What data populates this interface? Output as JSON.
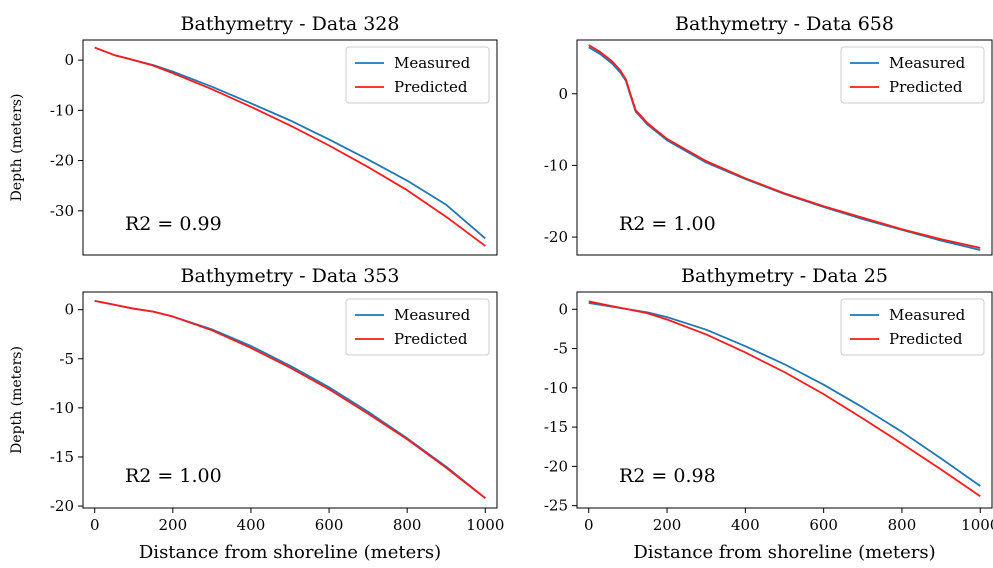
{
  "colors": {
    "measured": "#1f77b4",
    "predicted": "#ff1a1a",
    "axis": "#000000",
    "legend_border": "#cccccc"
  },
  "chart_data": [
    {
      "type": "line",
      "title": "Bathymetry - Data 328",
      "xlabel": "",
      "ylabel": "Depth (meters)",
      "xlim": [
        -30,
        1030
      ],
      "ylim": [
        -38.8,
        4
      ],
      "xticks": [],
      "yticks": [
        0,
        -10,
        -20,
        -30
      ],
      "legend": {
        "position": "upper right",
        "entries": [
          "Measured",
          "Predicted"
        ]
      },
      "annotation": "R2 = 0.99",
      "series": [
        {
          "name": "Measured",
          "color": "#1f77b4",
          "x": [
            0,
            50,
            100,
            150,
            200,
            300,
            400,
            500,
            600,
            700,
            800,
            900,
            1000
          ],
          "y": [
            2.5,
            1.0,
            0.0,
            -1.0,
            -2.3,
            -5.3,
            -8.6,
            -12.0,
            -15.8,
            -19.8,
            -24.0,
            -28.8,
            -35.5
          ]
        },
        {
          "name": "Predicted",
          "color": "#ff1a1a",
          "x": [
            0,
            50,
            100,
            150,
            200,
            300,
            400,
            500,
            600,
            700,
            800,
            900,
            1000
          ],
          "y": [
            2.5,
            1.0,
            0.0,
            -1.1,
            -2.6,
            -5.8,
            -9.3,
            -13.0,
            -17.0,
            -21.3,
            -25.9,
            -31.2,
            -37.0
          ]
        }
      ]
    },
    {
      "type": "line",
      "title": "Bathymetry - Data 658",
      "xlabel": "",
      "ylabel": "",
      "xlim": [
        -30,
        1030
      ],
      "ylim": [
        -22.5,
        7.5
      ],
      "xticks": [],
      "yticks": [
        0,
        -10,
        -20
      ],
      "legend": {
        "position": "upper right",
        "entries": [
          "Measured",
          "Predicted"
        ]
      },
      "annotation": "R2 = 1.00",
      "series": [
        {
          "name": "Measured",
          "color": "#1f77b4",
          "x": [
            0,
            30,
            60,
            80,
            95,
            105,
            120,
            150,
            200,
            300,
            400,
            500,
            600,
            700,
            800,
            900,
            1000
          ],
          "y": [
            6.5,
            5.5,
            4.2,
            3.0,
            1.8,
            0.0,
            -2.5,
            -4.3,
            -6.5,
            -9.6,
            -11.9,
            -14.0,
            -15.8,
            -17.5,
            -19.0,
            -20.5,
            -21.8
          ]
        },
        {
          "name": "Predicted",
          "color": "#ff1a1a",
          "x": [
            0,
            30,
            60,
            80,
            95,
            105,
            120,
            150,
            200,
            300,
            400,
            500,
            600,
            700,
            800,
            900,
            1000
          ],
          "y": [
            6.8,
            5.8,
            4.5,
            3.3,
            2.0,
            0.2,
            -2.3,
            -4.1,
            -6.3,
            -9.4,
            -11.8,
            -13.9,
            -15.7,
            -17.3,
            -18.9,
            -20.3,
            -21.5
          ]
        }
      ]
    },
    {
      "type": "line",
      "title": "Bathymetry - Data 353",
      "xlabel": "Distance from shoreline (meters)",
      "ylabel": "Depth (meters)",
      "xlim": [
        -30,
        1030
      ],
      "ylim": [
        -20.2,
        1.8
      ],
      "xticks": [
        0,
        200,
        400,
        600,
        800,
        1000
      ],
      "yticks": [
        0,
        -5,
        -10,
        -15,
        -20
      ],
      "legend": {
        "position": "upper right",
        "entries": [
          "Measured",
          "Predicted"
        ]
      },
      "annotation": "R2 = 1.00",
      "series": [
        {
          "name": "Measured",
          "color": "#1f77b4",
          "x": [
            0,
            50,
            100,
            150,
            200,
            300,
            400,
            500,
            600,
            700,
            800,
            900,
            1000
          ],
          "y": [
            0.9,
            0.5,
            0.1,
            -0.2,
            -0.7,
            -2.0,
            -3.7,
            -5.7,
            -7.9,
            -10.4,
            -13.1,
            -16.0,
            -19.2
          ]
        },
        {
          "name": "Predicted",
          "color": "#ff1a1a",
          "x": [
            0,
            50,
            100,
            150,
            200,
            300,
            400,
            500,
            600,
            700,
            800,
            900,
            1000
          ],
          "y": [
            0.9,
            0.5,
            0.1,
            -0.2,
            -0.7,
            -2.1,
            -3.9,
            -5.9,
            -8.1,
            -10.6,
            -13.2,
            -16.1,
            -19.2
          ]
        }
      ]
    },
    {
      "type": "line",
      "title": "Bathymetry - Data 25",
      "xlabel": "Distance from shoreline (meters)",
      "ylabel": "",
      "xlim": [
        -30,
        1030
      ],
      "ylim": [
        -25.3,
        2.2
      ],
      "xticks": [
        0,
        200,
        400,
        600,
        800,
        1000
      ],
      "yticks": [
        0,
        -5,
        -10,
        -15,
        -20,
        -25
      ],
      "legend": {
        "position": "upper right",
        "entries": [
          "Measured",
          "Predicted"
        ]
      },
      "annotation": "R2 = 0.98",
      "series": [
        {
          "name": "Measured",
          "color": "#1f77b4",
          "x": [
            0,
            50,
            100,
            150,
            200,
            300,
            400,
            500,
            600,
            700,
            800,
            900,
            1000
          ],
          "y": [
            0.8,
            0.4,
            0.0,
            -0.4,
            -1.0,
            -2.6,
            -4.7,
            -7.0,
            -9.6,
            -12.5,
            -15.6,
            -19.0,
            -22.5
          ]
        },
        {
          "name": "Predicted",
          "color": "#ff1a1a",
          "x": [
            0,
            50,
            100,
            150,
            200,
            300,
            400,
            500,
            600,
            700,
            800,
            900,
            1000
          ],
          "y": [
            1.0,
            0.5,
            0.0,
            -0.5,
            -1.3,
            -3.2,
            -5.5,
            -8.0,
            -10.8,
            -13.9,
            -17.1,
            -20.4,
            -23.8
          ]
        }
      ]
    }
  ]
}
